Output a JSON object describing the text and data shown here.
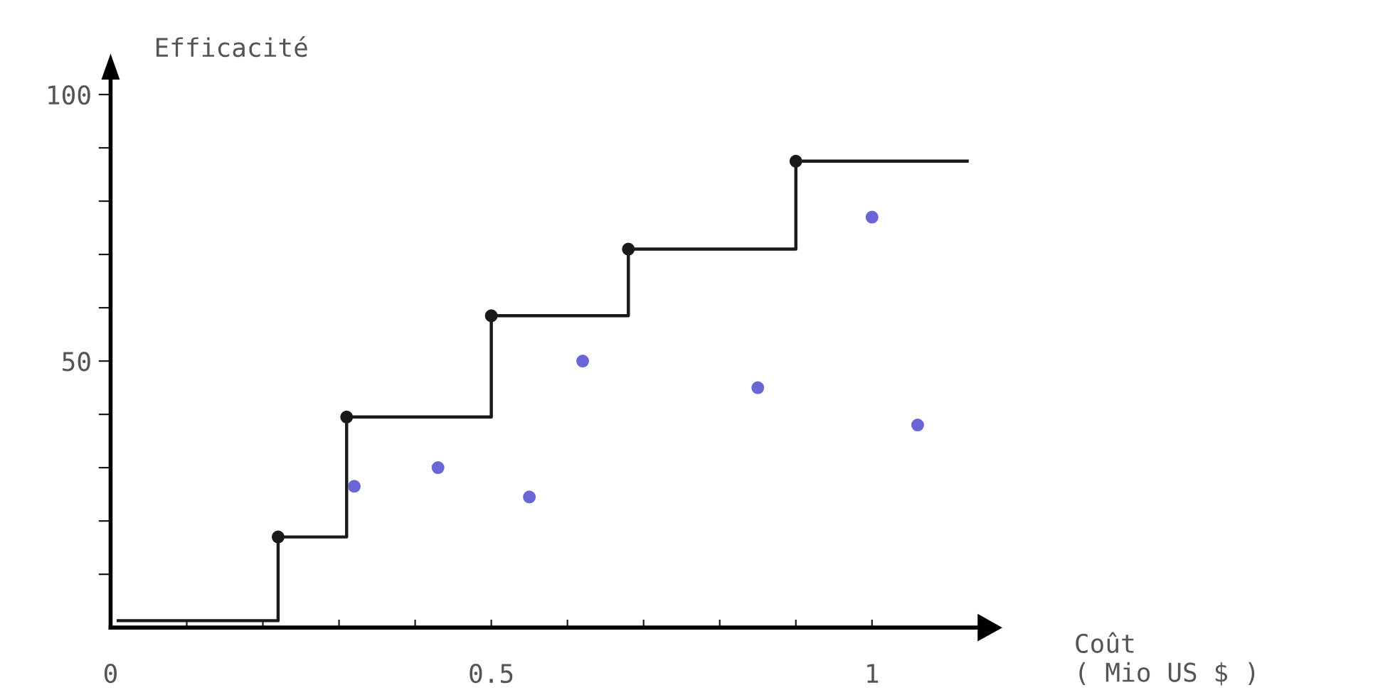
{
  "chart_data": {
    "type": "step",
    "xlabel": "Coût\n( Mio US $ )",
    "ylabel": "Efficacité",
    "xlim": [
      0,
      1.14
    ],
    "ylim": [
      0,
      103
    ],
    "xticks": [
      {
        "value": 0,
        "label": "0"
      },
      {
        "value": 0.1,
        "label": null
      },
      {
        "value": 0.2,
        "label": null
      },
      {
        "value": 0.3,
        "label": null
      },
      {
        "value": 0.4,
        "label": null
      },
      {
        "value": 0.5,
        "label": "0.5"
      },
      {
        "value": 0.6,
        "label": null
      },
      {
        "value": 0.7,
        "label": null
      },
      {
        "value": 0.8,
        "label": null
      },
      {
        "value": 0.9,
        "label": null
      },
      {
        "value": 1,
        "label": "1"
      }
    ],
    "yticks": [
      {
        "value": 10,
        "label": null
      },
      {
        "value": 20,
        "label": null
      },
      {
        "value": 30,
        "label": null
      },
      {
        "value": 40,
        "label": null
      },
      {
        "value": 50,
        "label": "50"
      },
      {
        "value": 60,
        "label": null
      },
      {
        "value": 70,
        "label": null
      },
      {
        "value": 80,
        "label": null
      },
      {
        "value": 90,
        "label": null
      },
      {
        "value": 100,
        "label": "100"
      }
    ],
    "grid": false,
    "legend": false,
    "series": [
      {
        "color": "#1a1a1a",
        "marker": "none",
        "line_style": "solid",
        "x": [
          0.01,
          0.22,
          0.31,
          0.5,
          0.68,
          0.9,
          1.125
        ],
        "values": [
          1.3,
          17,
          39.5,
          58.5,
          71,
          87.5,
          87.5
        ]
      },
      {
        "type": "scatter",
        "color": "#1a1a1a",
        "marker": "circle",
        "x": [
          0.22,
          0.31,
          0.5,
          0.68,
          0.9
        ],
        "values": [
          17,
          39.5,
          58.5,
          71,
          87.5
        ]
      },
      {
        "type": "scatter",
        "color": "#6a66d8",
        "marker": "circle",
        "x": [
          0.32,
          0.43,
          0.55,
          0.62,
          0.85,
          1.0,
          1.06
        ],
        "values": [
          26.5,
          30,
          24.5,
          50,
          45,
          77,
          38
        ]
      }
    ]
  }
}
